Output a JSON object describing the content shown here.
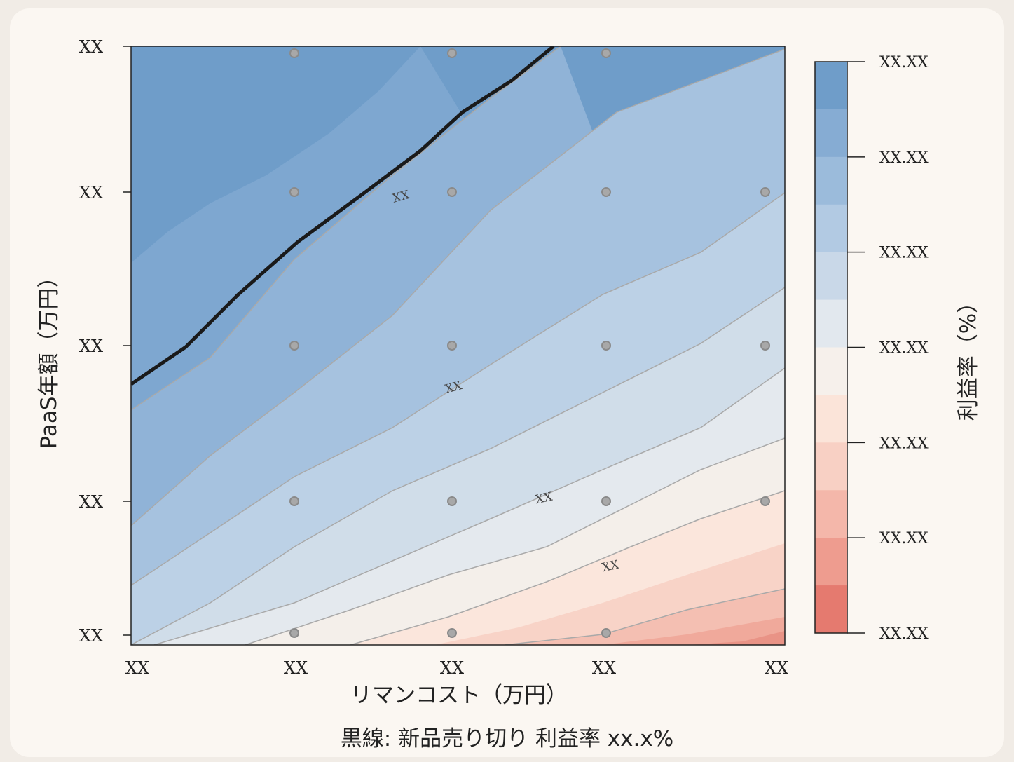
{
  "chart_data": {
    "type": "contour",
    "xlabel": "リマンコスト（万円）",
    "ylabel": "PaaS年額（万円）",
    "colorbar_label": "利益率（%）",
    "caption": "黒線: 新品売り切り 利益率 xx.x%",
    "x_tick_labels": [
      "XX",
      "XX",
      "XX",
      "XX",
      "XX"
    ],
    "y_tick_labels": [
      "XX",
      "XX",
      "XX",
      "XX",
      "XX"
    ],
    "colorbar_tick_labels": [
      "XX.XX",
      "XX.XX",
      "XX.XX",
      "XX.XX",
      "XX.XX",
      "XX.XX",
      "XX.XX"
    ],
    "contour_labels": [
      "XX",
      "XX",
      "XX",
      "XX"
    ],
    "colormap": [
      "#6f9dc9",
      "#7ea7d0",
      "#90b3d7",
      "#a6c2df",
      "#bcd1e6",
      "#d0dde9",
      "#e4e9ee",
      "#f4efea",
      "#fbe6dc",
      "#f8d3c7",
      "#f4bfb2",
      "#f0a99b",
      "#e99386",
      "#e57c70",
      "#e0655a"
    ],
    "point_color": "#8a8a8a",
    "threshold_line_color": "#1a1a1a",
    "sample_points": [
      {
        "xi": 1,
        "yi": 4
      },
      {
        "xi": 2,
        "yi": 4
      },
      {
        "xi": 3,
        "yi": 4
      },
      {
        "xi": 1,
        "yi": 3
      },
      {
        "xi": 2,
        "yi": 3
      },
      {
        "xi": 3,
        "yi": 3
      },
      {
        "xi": 4,
        "yi": 3
      },
      {
        "xi": 1,
        "yi": 2
      },
      {
        "xi": 2,
        "yi": 2
      },
      {
        "xi": 3,
        "yi": 2
      },
      {
        "xi": 4,
        "yi": 2
      },
      {
        "xi": 1,
        "yi": 1
      },
      {
        "xi": 2,
        "yi": 1
      },
      {
        "xi": 3,
        "yi": 1
      },
      {
        "xi": 4,
        "yi": 1
      },
      {
        "xi": 1,
        "yi": 0
      },
      {
        "xi": 2,
        "yi": 0
      },
      {
        "xi": 3,
        "yi": 0
      }
    ]
  }
}
